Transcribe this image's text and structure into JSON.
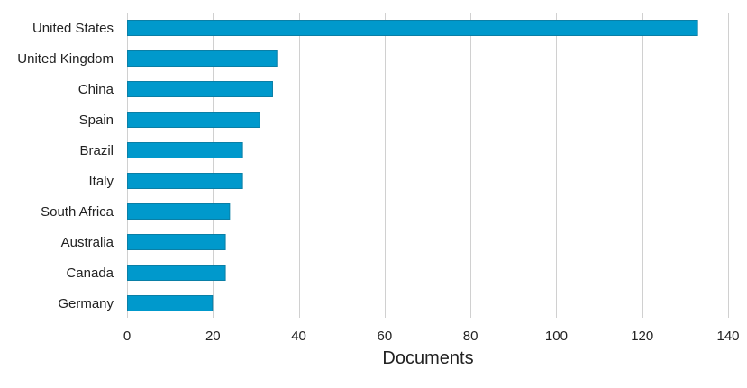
{
  "chart_data": {
    "type": "bar",
    "orientation": "horizontal",
    "title": "",
    "xlabel": "Documents",
    "ylabel": "",
    "categories": [
      "United States",
      "United Kingdom",
      "China",
      "Spain",
      "Brazil",
      "Italy",
      "South Africa",
      "Australia",
      "Canada",
      "Germany"
    ],
    "values": [
      133,
      35,
      34,
      31,
      27,
      27,
      24,
      23,
      23,
      20
    ],
    "xlim": [
      0,
      140
    ],
    "xticks": [
      0,
      20,
      40,
      60,
      80,
      100,
      120,
      140
    ],
    "grid": true,
    "legend": "none",
    "colors": {
      "bar_fill": "#0099cc",
      "bar_stroke": "#0a7fa6",
      "grid": "#d0d0d0",
      "text": "#222222"
    }
  }
}
